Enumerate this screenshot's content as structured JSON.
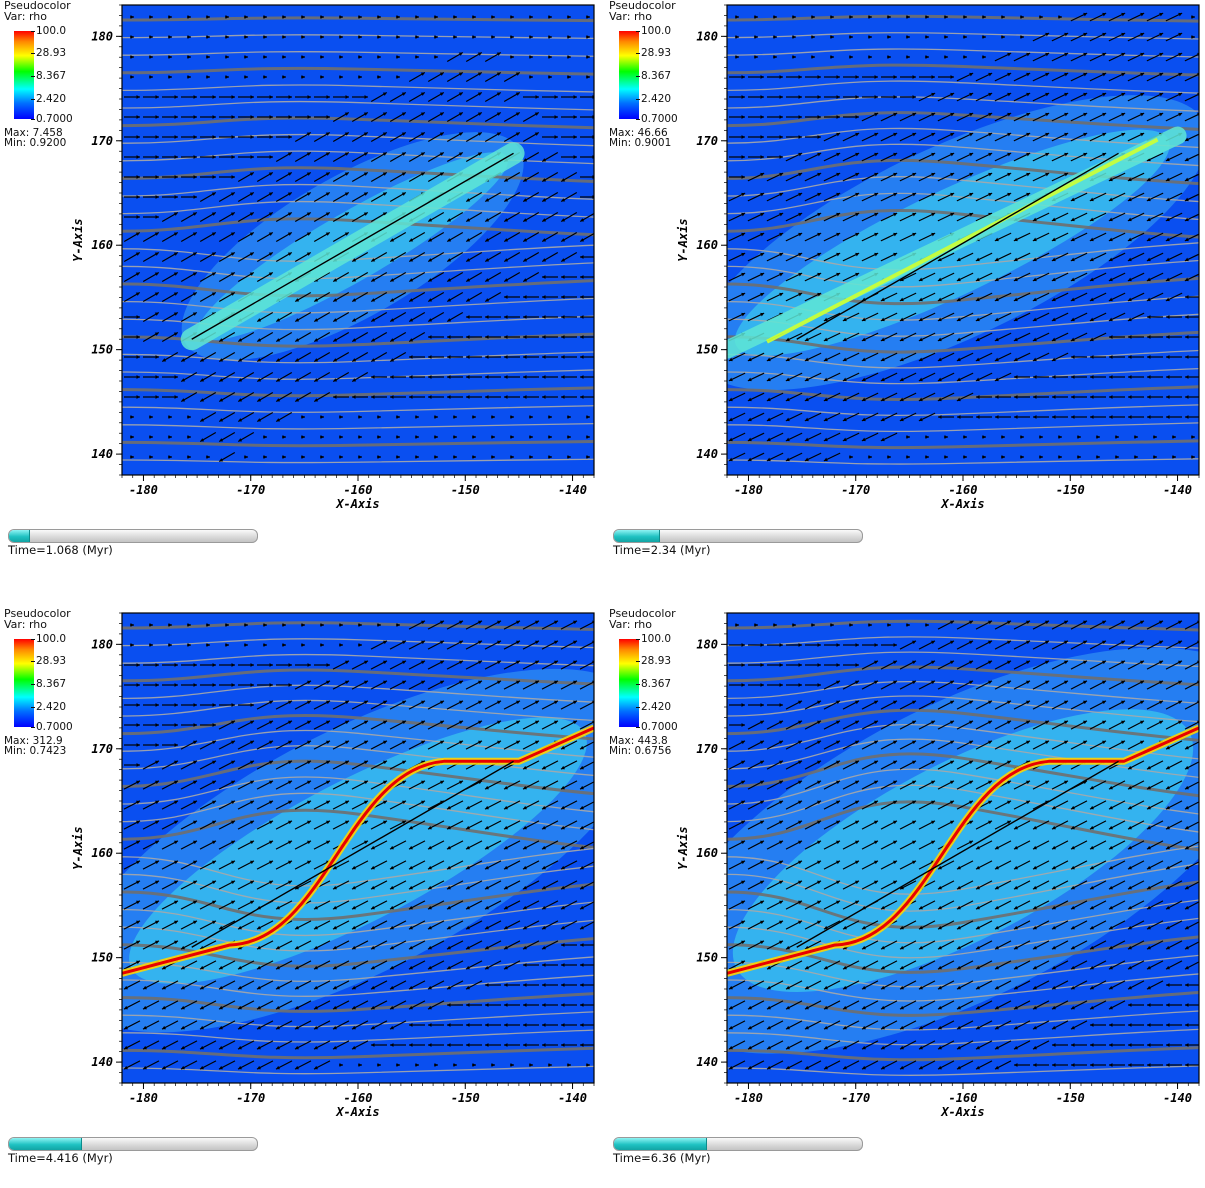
{
  "legend_title": "Pseudocolor",
  "legend_var": "Var: rho",
  "legend_ticks": [
    "100.0",
    "28.93",
    "8.367",
    "2.420",
    "0.7000"
  ],
  "colors": {
    "background_field": "#0a4ff0",
    "ramp_top": "#ff0000",
    "ramp_bottom": "#0000ff",
    "time_fill": "#1fc2c2"
  },
  "chart_data": [
    {
      "type": "heatmap",
      "title": "",
      "xlabel": "X-Axis",
      "ylabel": "Y-Axis",
      "xlim": [
        -182,
        -138
      ],
      "ylim": [
        138,
        183
      ],
      "xticks": [
        "-180",
        "-170",
        "-160",
        "-150",
        "-140"
      ],
      "yticks": [
        "140",
        "150",
        "160",
        "170",
        "180"
      ],
      "color_var": "rho",
      "color_scale": "log",
      "color_range": [
        0.7,
        100.0
      ],
      "max_label": "Max:  7.458",
      "min_label": "Min:  0.9200",
      "time_label": "Time=1.068 (Myr)",
      "time_fraction": 0.08,
      "filament": {
        "x": [
          -175.5,
          -145.5
        ],
        "y": [
          151.0,
          168.8
        ]
      }
    },
    {
      "type": "heatmap",
      "title": "",
      "xlabel": "X-Axis",
      "ylabel": "Y-Axis",
      "xlim": [
        -182,
        -138
      ],
      "ylim": [
        138,
        183
      ],
      "xticks": [
        "-180",
        "-170",
        "-160",
        "-150",
        "-140"
      ],
      "yticks": [
        "140",
        "150",
        "160",
        "170",
        "180"
      ],
      "color_var": "rho",
      "color_scale": "log",
      "color_range": [
        0.7,
        100.0
      ],
      "max_label": "Max:  46.66",
      "min_label": "Min:  0.9001",
      "time_label": "Time=2.34 (Myr)",
      "time_fraction": 0.18,
      "filament": {
        "x": [
          -182,
          -140
        ],
        "y": [
          150.0,
          170.5
        ]
      }
    },
    {
      "type": "heatmap",
      "title": "",
      "xlabel": "X-Axis",
      "ylabel": "Y-Axis",
      "xlim": [
        -182,
        -138
      ],
      "ylim": [
        138,
        183
      ],
      "xticks": [
        "-180",
        "-170",
        "-160",
        "-150",
        "-140"
      ],
      "yticks": [
        "140",
        "150",
        "160",
        "170",
        "180"
      ],
      "color_var": "rho",
      "color_scale": "log",
      "color_range": [
        0.7,
        100.0
      ],
      "max_label": "Max:  312.9",
      "min_label": "Min:  0.7423",
      "time_label": "Time=4.416 (Myr)",
      "time_fraction": 0.29,
      "filament": {
        "x": [
          -182,
          -138
        ],
        "y": [
          148.5,
          172.0
        ]
      }
    },
    {
      "type": "heatmap",
      "title": "",
      "xlabel": "X-Axis",
      "ylabel": "Y-Axis",
      "xlim": [
        -182,
        -138
      ],
      "ylim": [
        138,
        183
      ],
      "xticks": [
        "-180",
        "-170",
        "-160",
        "-150",
        "-140"
      ],
      "yticks": [
        "140",
        "150",
        "160",
        "170",
        "180"
      ],
      "color_var": "rho",
      "color_scale": "log",
      "color_range": [
        0.7,
        100.0
      ],
      "max_label": "Max:  443.8",
      "min_label": "Min:  0.6756",
      "time_label": "Time=6.36 (Myr)",
      "time_fraction": 0.37,
      "filament": {
        "x": [
          -182,
          -138
        ],
        "y": [
          148.5,
          172.0
        ]
      }
    }
  ]
}
